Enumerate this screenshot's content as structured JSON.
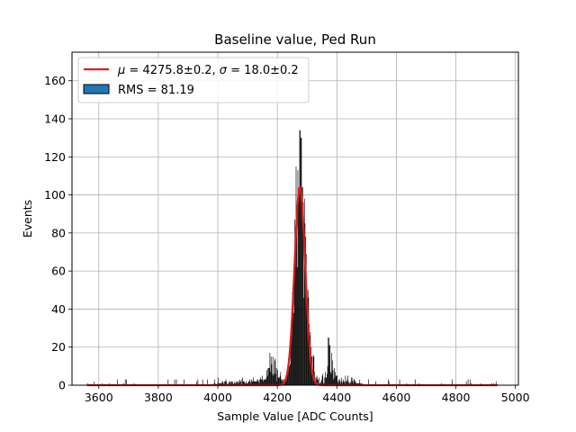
{
  "chart_data": {
    "type": "bar",
    "title": "Baseline value, Ped Run",
    "xlabel": "Sample Value [ADC Counts]",
    "ylabel": "Events",
    "xlim": [
      3510,
      5010
    ],
    "ylim": [
      0,
      175
    ],
    "xticks": [
      3600,
      3800,
      4000,
      4200,
      4400,
      4600,
      4800,
      5000
    ],
    "yticks": [
      0,
      20,
      40,
      60,
      80,
      100,
      120,
      140,
      160
    ],
    "grid": true,
    "legend_placement": "top-left",
    "colors": {
      "bars": "#000000",
      "fit": "#e31a1c",
      "legend_patch": "#1f77b4",
      "grid": "#b0b0b0"
    },
    "legend": [
      {
        "kind": "line",
        "label_parts": [
          "μ",
          " = 4275.8±0.2, ",
          "σ",
          " = 18.0±0.2"
        ]
      },
      {
        "kind": "patch",
        "label": "RMS = 81.19"
      }
    ],
    "histogram": {
      "range": [
        3560,
        4940
      ],
      "bin_width": 2,
      "peaks": [
        {
          "x": 4175,
          "value": 17
        },
        {
          "x": 4272,
          "value": 101
        },
        {
          "x": 4276,
          "value": 134
        },
        {
          "x": 4280,
          "value": 130
        },
        {
          "x": 4284,
          "value": 104
        },
        {
          "x": 4300,
          "value": 42
        },
        {
          "x": 4309,
          "value": 26
        },
        {
          "x": 4372,
          "value": 25
        },
        {
          "x": 4376,
          "value": 21
        }
      ]
    },
    "series": [
      {
        "name": "fit",
        "type": "gaussian",
        "mu": 4275.8,
        "sigma": 18.0,
        "amplitude": 104,
        "x_range": [
          3560,
          4940
        ]
      }
    ]
  }
}
